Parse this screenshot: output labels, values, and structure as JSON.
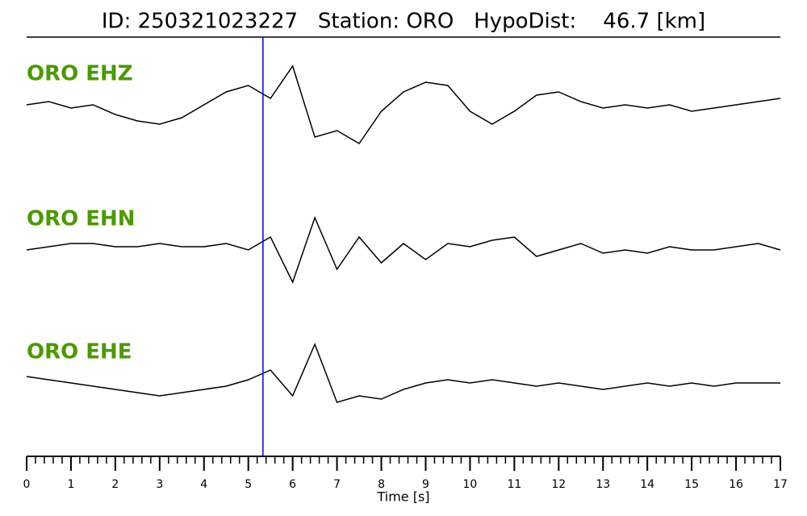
{
  "chart_data": {
    "type": "seismogram",
    "title": "ID: 250321023227   Station: ORO   HypoDist:    46.7 [km]",
    "xlabel": "Time [s]",
    "xlim": [
      0,
      17
    ],
    "xticks": [
      0,
      1,
      2,
      3,
      4,
      5,
      6,
      7,
      8,
      9,
      10,
      11,
      12,
      13,
      14,
      15,
      16,
      17
    ],
    "xminor_step": 0.2,
    "ylim": [
      -1,
      1
    ],
    "pick_x": 5.33,
    "pick_color": "#0000dd",
    "label_color": "#4c9900",
    "x": [
      0,
      0.5,
      1,
      1.5,
      2,
      2.5,
      3,
      3.5,
      4,
      4.5,
      5,
      5.5,
      6,
      6.5,
      7,
      7.5,
      8,
      8.5,
      9,
      9.5,
      10,
      10.5,
      11,
      11.5,
      12,
      12.5,
      13,
      13.5,
      14,
      14.5,
      15,
      15.5,
      16,
      16.5,
      17
    ],
    "series": [
      {
        "name": "ORO EHZ",
        "color": "#000000",
        "values": [
          0,
          0.05,
          -0.05,
          0,
          -0.15,
          -0.25,
          -0.3,
          -0.2,
          0,
          0.2,
          0.3,
          0.1,
          0.6,
          -0.5,
          -0.4,
          -0.6,
          -0.1,
          0.2,
          0.35,
          0.3,
          -0.1,
          -0.3,
          -0.1,
          0.15,
          0.2,
          0.05,
          -0.05,
          0,
          -0.05,
          0,
          -0.1,
          -0.05,
          0,
          0.05,
          0.1
        ]
      },
      {
        "name": "ORO EHN",
        "color": "#000000",
        "values": [
          0,
          0.05,
          0.1,
          0.1,
          0.05,
          0.05,
          0.1,
          0.05,
          0.05,
          0.1,
          0,
          0.2,
          -0.5,
          0.5,
          -0.3,
          0.2,
          -0.2,
          0.1,
          -0.15,
          0.1,
          0.05,
          0.15,
          0.2,
          -0.1,
          0,
          0.1,
          -0.05,
          0,
          -0.05,
          0.05,
          0,
          0,
          0.05,
          0.1,
          0
        ]
      },
      {
        "name": "ORO EHE",
        "color": "#000000",
        "values": [
          0.1,
          0.05,
          0,
          -0.05,
          -0.1,
          -0.15,
          -0.2,
          -0.15,
          -0.1,
          -0.05,
          0.05,
          0.2,
          -0.2,
          0.6,
          -0.3,
          -0.2,
          -0.25,
          -0.1,
          0,
          0.05,
          0,
          0.05,
          0,
          -0.05,
          0,
          -0.05,
          -0.1,
          -0.05,
          0,
          -0.05,
          0,
          -0.05,
          0,
          0,
          0
        ]
      }
    ]
  }
}
